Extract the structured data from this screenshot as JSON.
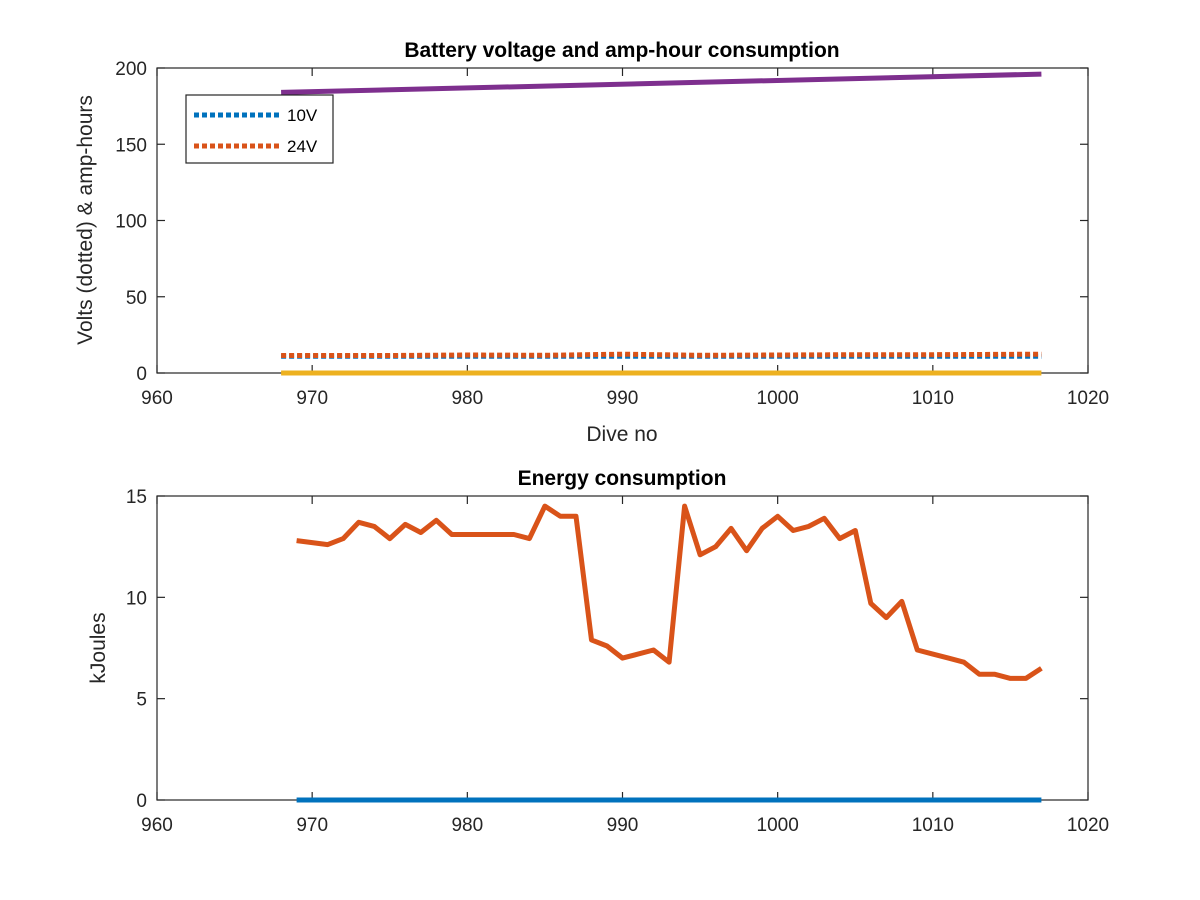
{
  "chart_data": [
    {
      "type": "line",
      "title": "Battery voltage and amp-hour consumption",
      "xlabel": "Dive no",
      "ylabel": "Volts (dotted) & amp-hours",
      "xlim": [
        960,
        1020
      ],
      "ylim": [
        0,
        200
      ],
      "xticks": [
        960,
        970,
        980,
        990,
        1000,
        1010,
        1020
      ],
      "yticks": [
        0,
        50,
        100,
        150,
        200
      ],
      "legend": {
        "position": "top-left",
        "entries": [
          "10V",
          "24V"
        ]
      },
      "grid": false,
      "series": [
        {
          "name": "10V",
          "style": "dotted",
          "color": "#0072BD",
          "x": [
            968,
            1017
          ],
          "y": [
            11,
            11
          ]
        },
        {
          "name": "24V",
          "style": "dotted",
          "color": "#D95319",
          "x": [
            968,
            975,
            980,
            985,
            990,
            995,
            1000,
            1005,
            1010,
            1017
          ],
          "y": [
            11.5,
            11.5,
            11.8,
            11.6,
            12.3,
            11.6,
            11.8,
            12.0,
            12.0,
            12.3
          ]
        },
        {
          "style": "solid",
          "color": "#EDB120",
          "x": [
            968,
            1017
          ],
          "y": [
            0,
            0
          ]
        },
        {
          "style": "solid",
          "color": "#7E2F8E",
          "x": [
            968,
            1017
          ],
          "y": [
            184,
            196
          ]
        }
      ]
    },
    {
      "type": "line",
      "title": "Energy consumption",
      "xlabel": "",
      "ylabel": "kJoules",
      "xlim": [
        960,
        1020
      ],
      "ylim": [
        0,
        15
      ],
      "xticks": [
        960,
        970,
        980,
        990,
        1000,
        1010,
        1020
      ],
      "yticks": [
        0,
        5,
        10,
        15
      ],
      "grid": false,
      "series": [
        {
          "style": "solid",
          "color": "#0072BD",
          "x": [
            969,
            1017
          ],
          "y": [
            0,
            0
          ]
        },
        {
          "style": "solid",
          "color": "#D95319",
          "x": [
            969,
            970,
            971,
            972,
            973,
            974,
            975,
            976,
            977,
            978,
            979,
            980,
            981,
            982,
            983,
            984,
            985,
            986,
            987,
            988,
            989,
            990,
            991,
            992,
            993,
            994,
            995,
            996,
            997,
            998,
            999,
            1000,
            1001,
            1002,
            1003,
            1004,
            1005,
            1006,
            1007,
            1008,
            1009,
            1010,
            1011,
            1012,
            1013,
            1014,
            1015,
            1016,
            1017
          ],
          "y": [
            12.8,
            12.7,
            12.6,
            12.9,
            13.7,
            13.5,
            12.9,
            13.6,
            13.2,
            13.8,
            13.1,
            13.1,
            13.1,
            13.1,
            13.1,
            12.9,
            14.5,
            14.0,
            14.0,
            7.9,
            7.6,
            7.0,
            7.2,
            7.4,
            6.8,
            14.5,
            12.1,
            12.5,
            13.4,
            12.3,
            13.4,
            14.0,
            13.3,
            13.5,
            13.9,
            12.9,
            13.3,
            9.7,
            9.0,
            9.8,
            7.4,
            7.2,
            7.0,
            6.8,
            6.2,
            6.2,
            6.0,
            6.0,
            6.5
          ]
        }
      ]
    }
  ]
}
